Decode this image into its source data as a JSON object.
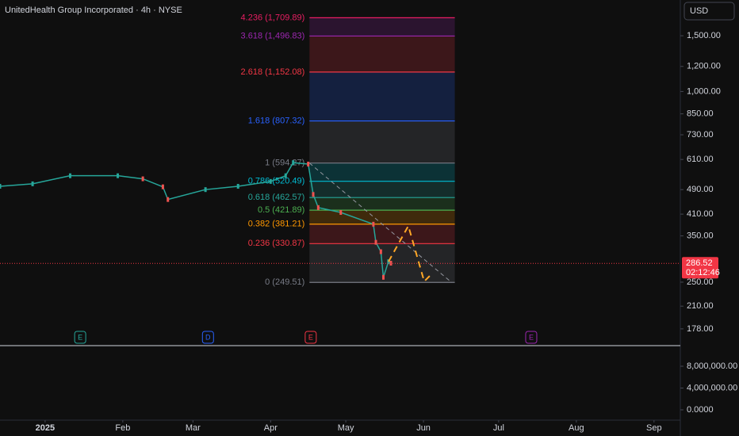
{
  "header": {
    "title": "UnitedHealth Group Incorporated · 4h · NYSE",
    "currency": "USD"
  },
  "chart_data": {
    "type": "line",
    "x": [
      -18,
      -5,
      10,
      29,
      39,
      47,
      49,
      64,
      77,
      90,
      96,
      99,
      105,
      107,
      109,
      118,
      131,
      132,
      134,
      135,
      137,
      138
    ],
    "series": [
      {
        "color": "#26a69a",
        "down_color": "#ef5350",
        "values": [
          502,
          511,
          542,
          542,
          530,
          500,
          456,
          490,
          502,
          520,
          542,
          596,
          590,
          473,
          430,
          415,
          381,
          334,
          312,
          259,
          290,
          287
        ]
      }
    ],
    "xlim": [
      -18,
      253.5
    ],
    "xticks": [
      {
        "value": 0,
        "label": "2025"
      },
      {
        "value": 31,
        "label": "Feb"
      },
      {
        "value": 59,
        "label": "Mar"
      },
      {
        "value": 90,
        "label": "Apr"
      },
      {
        "value": 120,
        "label": "May"
      },
      {
        "value": 151,
        "label": "Jun"
      },
      {
        "value": 181,
        "label": "Jul"
      },
      {
        "value": 212,
        "label": "Aug"
      },
      {
        "value": 243,
        "label": "Sep"
      }
    ],
    "ylim": [
      158.5,
      1945
    ],
    "log_scale": true,
    "yticks": [
      {
        "value": 1500,
        "label": "1,500.00"
      },
      {
        "value": 1200,
        "label": "1,200.00"
      },
      {
        "value": 1000,
        "label": "1,000.00"
      },
      {
        "value": 850,
        "label": "850.00"
      },
      {
        "value": 730,
        "label": "730.00"
      },
      {
        "value": 610,
        "label": "610.00"
      },
      {
        "value": 490,
        "label": "490.00"
      },
      {
        "value": 410,
        "label": "410.00"
      },
      {
        "value": 350,
        "label": "350.00"
      },
      {
        "value": 250,
        "label": "250.00"
      },
      {
        "value": 210,
        "label": "210.00"
      },
      {
        "value": 178,
        "label": "178.00"
      }
    ],
    "last_price": {
      "value": 286.52,
      "label": "286.52",
      "countdown": "02:12:46",
      "color": "#f23645"
    },
    "fib": {
      "x_range": [
        105.5,
        163.5
      ],
      "levels": [
        {
          "price": 1709.89,
          "label": "4.236 (1,709.89)",
          "color": "#e91e63"
        },
        {
          "price": 1496.83,
          "label": "3.618 (1,496.83)",
          "color": "#9c27b0"
        },
        {
          "price": 1152.08,
          "label": "2.618 (1,152.08)",
          "color": "#f23645"
        },
        {
          "price": 807.32,
          "label": "1.618 (807.32)",
          "color": "#2962ff"
        },
        {
          "price": 594.27,
          "label": "1 (594.27)",
          "color": "#787b86"
        },
        {
          "price": 520.49,
          "label": "0.786 (520.49)",
          "color": "#00bcd4"
        },
        {
          "price": 462.57,
          "label": "0.618 (462.57)",
          "color": "#26a69a"
        },
        {
          "price": 421.89,
          "label": "0.5 (421.89)",
          "color": "#4caf50"
        },
        {
          "price": 381.21,
          "label": "0.382 (381.21)",
          "color": "#ff9800"
        },
        {
          "price": 330.87,
          "label": "0.236 (330.87)",
          "color": "#f23645"
        },
        {
          "price": 249.51,
          "label": "0 (249.51)",
          "color": "#787b86"
        }
      ]
    },
    "events": [
      {
        "x": 14,
        "label": "E",
        "color": "#26a69a"
      },
      {
        "x": 65,
        "label": "D",
        "color": "#2962ff"
      },
      {
        "x": 106,
        "label": "E",
        "color": "#f23645"
      },
      {
        "x": 194,
        "label": "E",
        "color": "#9c27b0"
      }
    ],
    "volume": {
      "ylim": [
        -1890000,
        11636000
      ],
      "yticks": [
        {
          "value": 8000000,
          "label": "8,000,000.00"
        },
        {
          "value": 4000000,
          "label": "4,000,000.00"
        },
        {
          "value": 0,
          "label": "0.0000"
        }
      ]
    }
  }
}
